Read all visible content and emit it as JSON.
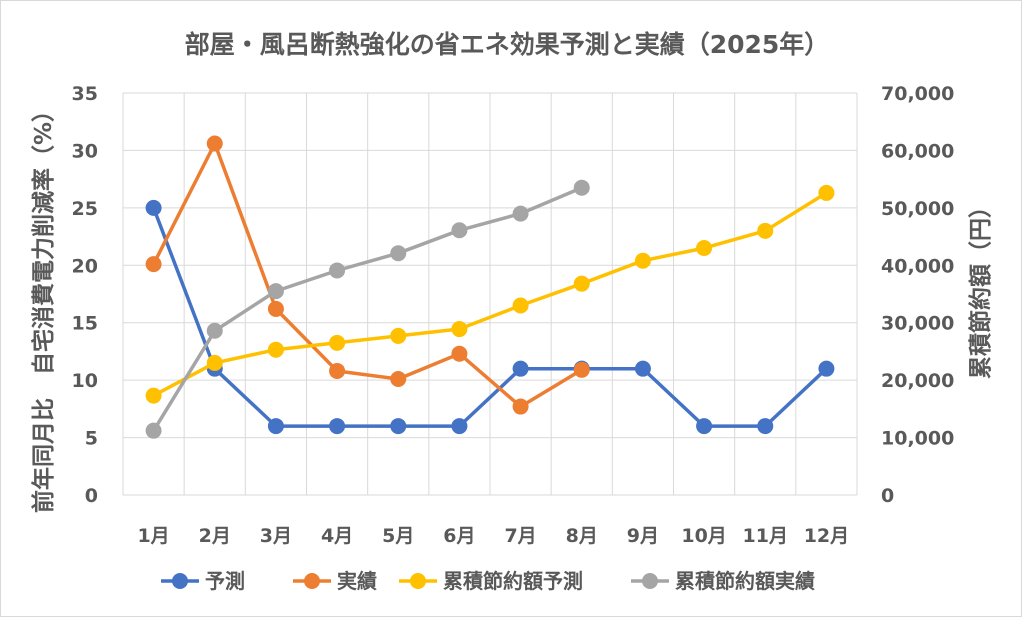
{
  "chart_data": {
    "type": "line",
    "title": "部屋・風呂断熱強化の省エネ効果予測と実績（2025年）",
    "categories": [
      "1月",
      "2月",
      "3月",
      "4月",
      "5月",
      "6月",
      "7月",
      "8月",
      "9月",
      "10月",
      "11月",
      "12月"
    ],
    "y_left": {
      "label": "前年同月比　自宅消費電力削減率（%）",
      "range": [
        0,
        35
      ],
      "ticks": [
        "0",
        "5",
        "10",
        "15",
        "20",
        "25",
        "30",
        "35"
      ]
    },
    "y_right": {
      "label": "累積節約額（円）",
      "range": [
        0,
        70000
      ],
      "ticks": [
        "0",
        "10,000",
        "20,000",
        "30,000",
        "40,000",
        "50,000",
        "60,000",
        "70,000"
      ]
    },
    "grid": true,
    "legend_position": "bottom",
    "series": [
      {
        "name": "予測",
        "axis": "left",
        "color": "#4472C4",
        "values": [
          25,
          11,
          6,
          6,
          6,
          6,
          11,
          11,
          11,
          6,
          6,
          11
        ]
      },
      {
        "name": "実績",
        "axis": "left",
        "color": "#ED7D31",
        "values": [
          20.1,
          30.6,
          16.2,
          10.8,
          10.1,
          12.3,
          7.7,
          10.9,
          null,
          null,
          null,
          null
        ]
      },
      {
        "name": "累積節約額予測",
        "axis": "right",
        "color": "#FFC000",
        "values": [
          17300,
          23000,
          25300,
          26500,
          27700,
          28900,
          33000,
          36800,
          40800,
          43000,
          46000,
          52600
        ]
      },
      {
        "name": "累積節約額実績",
        "axis": "right",
        "color": "#A5A5A5",
        "values": [
          11200,
          28600,
          35500,
          39100,
          42100,
          46100,
          49000,
          53500,
          null,
          null,
          null,
          null
        ]
      }
    ]
  }
}
